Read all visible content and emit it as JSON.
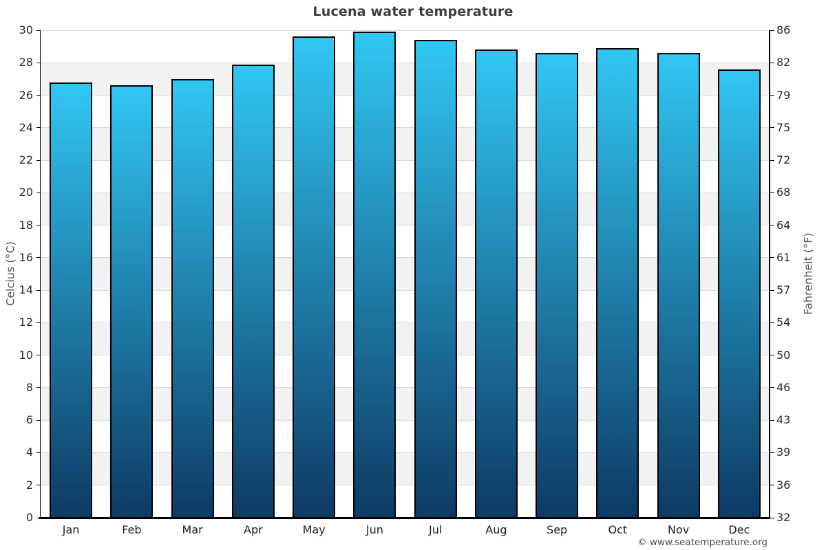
{
  "title": "Lucena water temperature",
  "footer": {
    "credit": "© www.seatemperature.org"
  },
  "axes": {
    "left_title": "Celcius (°C)",
    "right_title": "Fahrenheit (°F)"
  },
  "chart_data": {
    "type": "bar",
    "title": "Lucena water temperature",
    "categories": [
      "Jan",
      "Feb",
      "Mar",
      "Apr",
      "May",
      "Jun",
      "Jul",
      "Aug",
      "Sep",
      "Oct",
      "Nov",
      "Dec"
    ],
    "values": [
      26.8,
      26.6,
      27.0,
      27.9,
      29.6,
      29.9,
      29.4,
      28.8,
      28.6,
      28.9,
      28.6,
      27.6
    ],
    "xlabel": "",
    "ylabel_left": "Celcius (°C)",
    "ylabel_right": "Fahrenheit (°F)",
    "ylim": [
      0,
      30
    ],
    "celsius_tick_step": 2,
    "celsius_tick_labels": [
      "0",
      "2",
      "4",
      "6",
      "8",
      "10",
      "12",
      "14",
      "16",
      "18",
      "20",
      "22",
      "24",
      "26",
      "28",
      "30"
    ],
    "fahrenheit_tick_labels": [
      "32",
      "36",
      "39",
      "43",
      "46",
      "50",
      "54",
      "57",
      "61",
      "64",
      "68",
      "72",
      "75",
      "79",
      "82",
      "86"
    ],
    "grid": "alternating-horizontal-bands",
    "legend": "none",
    "colors": {
      "bar_gradient_top": "#31c7f3",
      "bar_gradient_bottom": "#0d3a64",
      "bar_border": "#010101",
      "band_gray": "#f2f2f2",
      "band_white": "#ffffff",
      "gridline": "#d9d9d9",
      "axis_line": "#000000",
      "title_text": "#3e3e3e",
      "tick_text": "#2b2b2b",
      "axis_title_text": "#555555",
      "footer_text": "#4a4a4a"
    }
  }
}
